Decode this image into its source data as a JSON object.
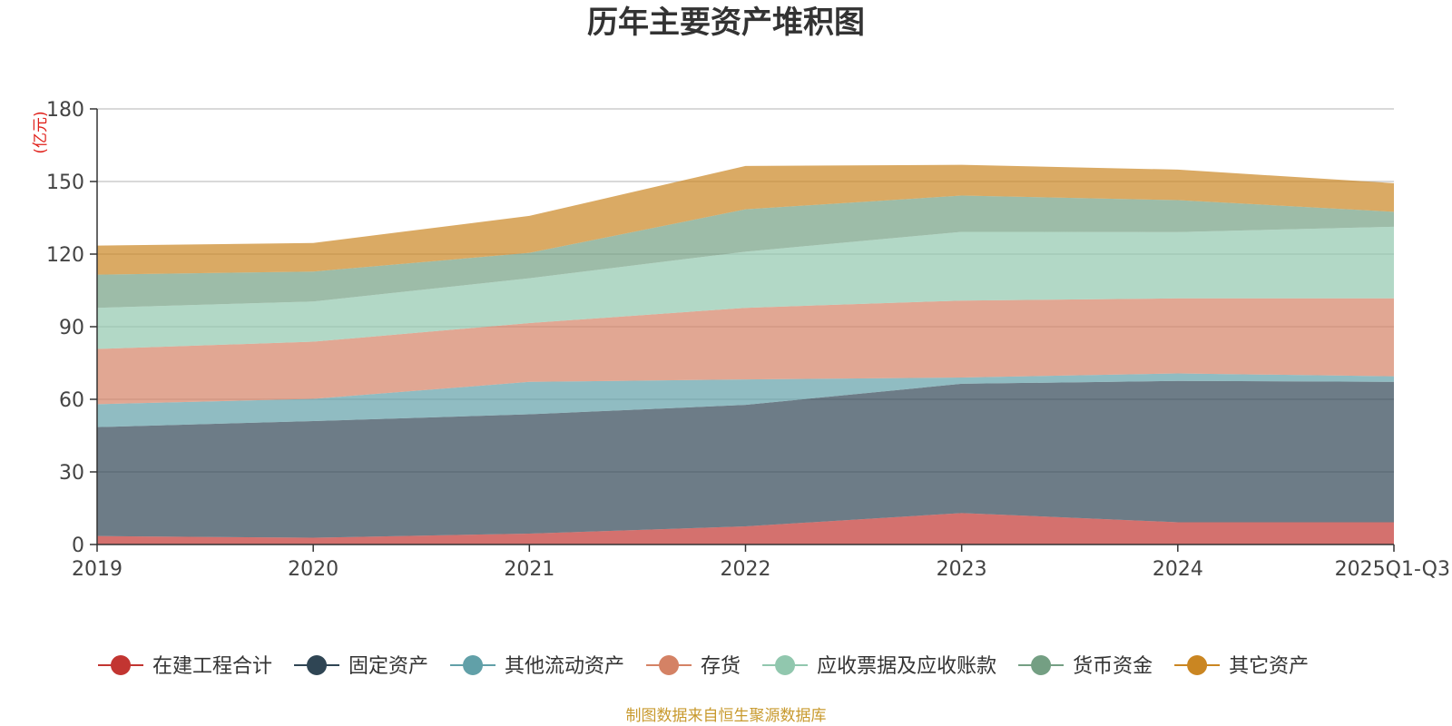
{
  "chart_data": {
    "type": "area",
    "stacked": true,
    "title": "历年主要资产堆积图",
    "ylabel": "(亿元)",
    "xlabel": "",
    "ylim": [
      0,
      180
    ],
    "yticks": [
      0,
      30,
      60,
      90,
      120,
      150,
      180
    ],
    "categories": [
      "2019",
      "2020",
      "2021",
      "2022",
      "2023",
      "2024",
      "2025Q1-Q3"
    ],
    "series": [
      {
        "name": "在建工程合计",
        "color": "#c23531",
        "values": [
          3.5,
          2.8,
          4.5,
          7.5,
          13.0,
          9.2,
          9.2
        ]
      },
      {
        "name": "固定资产",
        "color": "#2f4554",
        "values": [
          45.0,
          48.2,
          49.3,
          50.2,
          53.4,
          58.4,
          58.0
        ]
      },
      {
        "name": "其他流动资产",
        "color": "#61a0a8",
        "values": [
          9.5,
          9.2,
          13.4,
          10.5,
          2.6,
          3.1,
          2.3
        ]
      },
      {
        "name": "存货",
        "color": "#d48265",
        "values": [
          22.8,
          23.6,
          24.3,
          29.6,
          31.8,
          31.0,
          32.2
        ]
      },
      {
        "name": "应收票据及应收账款",
        "color": "#91c7ae",
        "values": [
          17.0,
          16.6,
          18.5,
          23.2,
          28.4,
          27.4,
          29.6
        ]
      },
      {
        "name": "货币资金",
        "color": "#749f83",
        "values": [
          13.7,
          12.4,
          10.5,
          17.5,
          15.0,
          13.2,
          6.2
        ]
      },
      {
        "name": "其它资产",
        "color": "#ca8622",
        "values": [
          12.0,
          11.8,
          15.3,
          17.9,
          12.7,
          12.6,
          11.8
        ]
      }
    ],
    "legend_position": "bottom"
  },
  "footer": {
    "source": "制图数据来自恒生聚源数据库"
  }
}
